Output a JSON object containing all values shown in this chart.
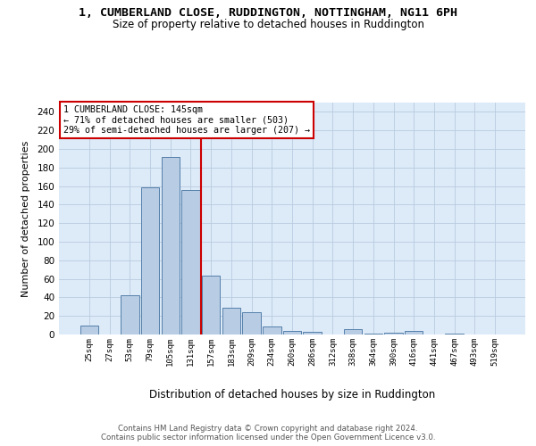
{
  "title": "1, CUMBERLAND CLOSE, RUDDINGTON, NOTTINGHAM, NG11 6PH",
  "subtitle": "Size of property relative to detached houses in Ruddington",
  "xlabel": "Distribution of detached houses by size in Ruddington",
  "ylabel": "Number of detached properties",
  "bar_labels": [
    "25sqm",
    "27sqm",
    "53sqm",
    "79sqm",
    "105sqm",
    "131sqm",
    "157sqm",
    "183sqm",
    "209sqm",
    "234sqm",
    "260sqm",
    "286sqm",
    "312sqm",
    "338sqm",
    "364sqm",
    "390sqm",
    "416sqm",
    "441sqm",
    "467sqm",
    "493sqm",
    "519sqm"
  ],
  "bar_values": [
    10,
    0,
    42,
    159,
    191,
    156,
    63,
    29,
    24,
    9,
    4,
    3,
    0,
    6,
    1,
    2,
    4,
    0,
    1,
    0,
    0
  ],
  "property_line_x": 5.5,
  "annotation_text": "1 CUMBERLAND CLOSE: 145sqm\n← 71% of detached houses are smaller (503)\n29% of semi-detached houses are larger (207) →",
  "bar_color": "#b8cce4",
  "bar_edge_color": "#5580aa",
  "line_color": "#cc0000",
  "annotation_box_edge_color": "#cc0000",
  "background_color": "#ddeaf8",
  "grid_color": "#b8cbe0",
  "footer_text": "Contains HM Land Registry data © Crown copyright and database right 2024.\nContains public sector information licensed under the Open Government Licence v3.0.",
  "ylim": [
    0,
    250
  ],
  "yticks": [
    0,
    20,
    40,
    60,
    80,
    100,
    120,
    140,
    160,
    180,
    200,
    220,
    240
  ]
}
